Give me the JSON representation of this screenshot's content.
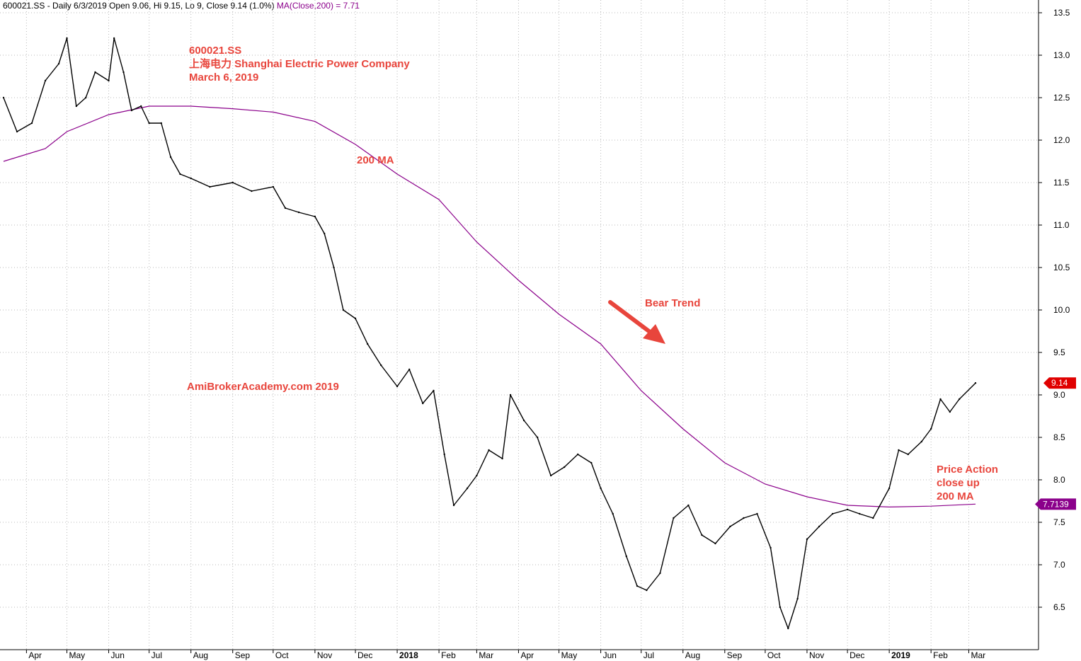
{
  "header": {
    "text": "600021.SS - Daily 6/3/2019 Open 9.06, Hi 9.15, Lo 9, Close 9.14 (1.0%)",
    "ma_text": "MA(Close,200) = 7.71"
  },
  "annotations": {
    "title_lines": [
      "600021.SS",
      "上海电力  Shanghai Electric Power Company",
      "March 6, 2019"
    ],
    "ma_label": "200 MA",
    "bear_trend": "Bear Trend",
    "watermark": "AmiBrokerAcademy.com   2019",
    "price_action_lines": [
      "Price Action",
      "close up",
      "200 MA"
    ]
  },
  "colors": {
    "price": "#000000",
    "ma": "#8b008b",
    "annotation": "#e8453c",
    "close_tag": "#e00000",
    "ma_tag": "#8b008b",
    "grid": "#b8b8b8"
  },
  "chart_data": {
    "type": "line",
    "title": "",
    "grid": true,
    "ylim": [
      6.1,
      13.6
    ],
    "y_ticks": [
      "6.5",
      "7.0",
      "7.5",
      "8.0",
      "8.5",
      "9.0",
      "9.5",
      "10.0",
      "10.5",
      "11.0",
      "11.5",
      "12.0",
      "12.5",
      "13.0",
      "13.5"
    ],
    "x_ticks": [
      {
        "label": "Apr",
        "date": "2017-04-01"
      },
      {
        "label": "May",
        "date": "2017-05-01"
      },
      {
        "label": "Jun",
        "date": "2017-06-01"
      },
      {
        "label": "Jul",
        "date": "2017-07-01"
      },
      {
        "label": "Aug",
        "date": "2017-08-01"
      },
      {
        "label": "Sep",
        "date": "2017-09-01"
      },
      {
        "label": "Oct",
        "date": "2017-10-01"
      },
      {
        "label": "Nov",
        "date": "2017-11-01"
      },
      {
        "label": "Dec",
        "date": "2017-12-01"
      },
      {
        "label": "2018",
        "date": "2018-01-01",
        "year": true
      },
      {
        "label": "Feb",
        "date": "2018-02-01"
      },
      {
        "label": "Mar",
        "date": "2018-03-01"
      },
      {
        "label": "Apr",
        "date": "2018-04-01"
      },
      {
        "label": "May",
        "date": "2018-05-01"
      },
      {
        "label": "Jun",
        "date": "2018-06-01"
      },
      {
        "label": "Jul",
        "date": "2018-07-01"
      },
      {
        "label": "Aug",
        "date": "2018-08-01"
      },
      {
        "label": "Sep",
        "date": "2018-09-01"
      },
      {
        "label": "Oct",
        "date": "2018-10-01"
      },
      {
        "label": "Nov",
        "date": "2018-11-01"
      },
      {
        "label": "Dec",
        "date": "2018-12-01"
      },
      {
        "label": "2019",
        "date": "2019-01-01",
        "year": true
      },
      {
        "label": "Feb",
        "date": "2019-02-01"
      },
      {
        "label": "Mar",
        "date": "2019-03-01"
      }
    ],
    "series": [
      {
        "name": "600021.SS",
        "points": [
          {
            "x": "2017-03-15",
            "y": 12.5
          },
          {
            "x": "2017-03-25",
            "y": 12.1
          },
          {
            "x": "2017-04-05",
            "y": 12.2
          },
          {
            "x": "2017-04-15",
            "y": 12.7
          },
          {
            "x": "2017-04-25",
            "y": 12.9
          },
          {
            "x": "2017-05-01",
            "y": 13.2
          },
          {
            "x": "2017-05-08",
            "y": 12.4
          },
          {
            "x": "2017-05-15",
            "y": 12.5
          },
          {
            "x": "2017-05-22",
            "y": 12.8
          },
          {
            "x": "2017-06-01",
            "y": 12.7
          },
          {
            "x": "2017-06-05",
            "y": 13.2
          },
          {
            "x": "2017-06-12",
            "y": 12.8
          },
          {
            "x": "2017-06-18",
            "y": 12.35
          },
          {
            "x": "2017-06-25",
            "y": 12.4
          },
          {
            "x": "2017-07-01",
            "y": 12.2
          },
          {
            "x": "2017-07-10",
            "y": 12.2
          },
          {
            "x": "2017-07-17",
            "y": 11.8
          },
          {
            "x": "2017-07-24",
            "y": 11.6
          },
          {
            "x": "2017-08-01",
            "y": 11.55
          },
          {
            "x": "2017-08-15",
            "y": 11.45
          },
          {
            "x": "2017-09-01",
            "y": 11.5
          },
          {
            "x": "2017-09-15",
            "y": 11.4
          },
          {
            "x": "2017-10-01",
            "y": 11.45
          },
          {
            "x": "2017-10-10",
            "y": 11.2
          },
          {
            "x": "2017-10-20",
            "y": 11.15
          },
          {
            "x": "2017-11-01",
            "y": 11.1
          },
          {
            "x": "2017-11-08",
            "y": 10.9
          },
          {
            "x": "2017-11-15",
            "y": 10.5
          },
          {
            "x": "2017-11-22",
            "y": 10.0
          },
          {
            "x": "2017-12-01",
            "y": 9.9
          },
          {
            "x": "2017-12-10",
            "y": 9.6
          },
          {
            "x": "2017-12-20",
            "y": 9.35
          },
          {
            "x": "2018-01-01",
            "y": 9.1
          },
          {
            "x": "2018-01-10",
            "y": 9.3
          },
          {
            "x": "2018-01-20",
            "y": 8.9
          },
          {
            "x": "2018-01-28",
            "y": 9.05
          },
          {
            "x": "2018-02-05",
            "y": 8.3
          },
          {
            "x": "2018-02-12",
            "y": 7.7
          },
          {
            "x": "2018-02-22",
            "y": 7.9
          },
          {
            "x": "2018-03-01",
            "y": 8.05
          },
          {
            "x": "2018-03-10",
            "y": 8.35
          },
          {
            "x": "2018-03-20",
            "y": 8.25
          },
          {
            "x": "2018-03-26",
            "y": 9.0
          },
          {
            "x": "2018-04-05",
            "y": 8.7
          },
          {
            "x": "2018-04-15",
            "y": 8.5
          },
          {
            "x": "2018-04-25",
            "y": 8.05
          },
          {
            "x": "2018-05-05",
            "y": 8.15
          },
          {
            "x": "2018-05-15",
            "y": 8.3
          },
          {
            "x": "2018-05-25",
            "y": 8.2
          },
          {
            "x": "2018-06-01",
            "y": 7.9
          },
          {
            "x": "2018-06-10",
            "y": 7.6
          },
          {
            "x": "2018-06-20",
            "y": 7.1
          },
          {
            "x": "2018-06-28",
            "y": 6.75
          },
          {
            "x": "2018-07-05",
            "y": 6.7
          },
          {
            "x": "2018-07-15",
            "y": 6.9
          },
          {
            "x": "2018-07-25",
            "y": 7.55
          },
          {
            "x": "2018-08-05",
            "y": 7.7
          },
          {
            "x": "2018-08-15",
            "y": 7.35
          },
          {
            "x": "2018-08-25",
            "y": 7.25
          },
          {
            "x": "2018-09-05",
            "y": 7.45
          },
          {
            "x": "2018-09-15",
            "y": 7.55
          },
          {
            "x": "2018-09-25",
            "y": 7.6
          },
          {
            "x": "2018-10-05",
            "y": 7.2
          },
          {
            "x": "2018-10-12",
            "y": 6.5
          },
          {
            "x": "2018-10-18",
            "y": 6.25
          },
          {
            "x": "2018-10-25",
            "y": 6.6
          },
          {
            "x": "2018-11-01",
            "y": 7.3
          },
          {
            "x": "2018-11-10",
            "y": 7.45
          },
          {
            "x": "2018-11-20",
            "y": 7.6
          },
          {
            "x": "2018-12-01",
            "y": 7.65
          },
          {
            "x": "2018-12-10",
            "y": 7.6
          },
          {
            "x": "2018-12-20",
            "y": 7.55
          },
          {
            "x": "2019-01-01",
            "y": 7.9
          },
          {
            "x": "2019-01-08",
            "y": 8.35
          },
          {
            "x": "2019-01-15",
            "y": 8.3
          },
          {
            "x": "2019-01-25",
            "y": 8.45
          },
          {
            "x": "2019-02-01",
            "y": 8.6
          },
          {
            "x": "2019-02-08",
            "y": 8.95
          },
          {
            "x": "2019-02-15",
            "y": 8.8
          },
          {
            "x": "2019-02-22",
            "y": 8.95
          },
          {
            "x": "2019-03-06",
            "y": 9.14
          }
        ]
      },
      {
        "name": "MA(Close,200)",
        "points": [
          {
            "x": "2017-03-15",
            "y": 11.75
          },
          {
            "x": "2017-04-15",
            "y": 11.9
          },
          {
            "x": "2017-05-01",
            "y": 12.1
          },
          {
            "x": "2017-06-01",
            "y": 12.3
          },
          {
            "x": "2017-07-01",
            "y": 12.4
          },
          {
            "x": "2017-08-01",
            "y": 12.4
          },
          {
            "x": "2017-09-01",
            "y": 12.37
          },
          {
            "x": "2017-10-01",
            "y": 12.33
          },
          {
            "x": "2017-11-01",
            "y": 12.22
          },
          {
            "x": "2017-12-01",
            "y": 11.95
          },
          {
            "x": "2018-01-01",
            "y": 11.6
          },
          {
            "x": "2018-02-01",
            "y": 11.3
          },
          {
            "x": "2018-03-01",
            "y": 10.8
          },
          {
            "x": "2018-04-01",
            "y": 10.35
          },
          {
            "x": "2018-05-01",
            "y": 9.95
          },
          {
            "x": "2018-06-01",
            "y": 9.6
          },
          {
            "x": "2018-07-01",
            "y": 9.05
          },
          {
            "x": "2018-08-01",
            "y": 8.6
          },
          {
            "x": "2018-09-01",
            "y": 8.2
          },
          {
            "x": "2018-10-01",
            "y": 7.95
          },
          {
            "x": "2018-11-01",
            "y": 7.8
          },
          {
            "x": "2018-12-01",
            "y": 7.7
          },
          {
            "x": "2019-01-01",
            "y": 7.68
          },
          {
            "x": "2019-02-01",
            "y": 7.69
          },
          {
            "x": "2019-03-06",
            "y": 7.7139
          }
        ]
      }
    ],
    "last_values": {
      "close": "9.14",
      "ma": "7.7139"
    }
  }
}
